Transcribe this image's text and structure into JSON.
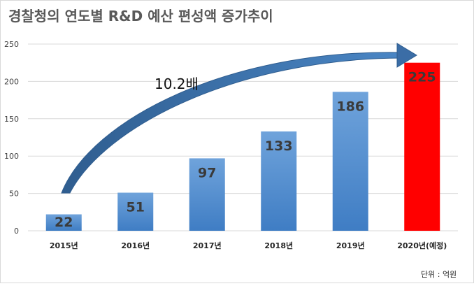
{
  "chart_data": {
    "type": "bar",
    "title": "경찰청의 연도별 R&D 예산 편성액 증가추이",
    "categories": [
      "2015년",
      "2016년",
      "2017년",
      "2018년",
      "2019년",
      "2020년(예정)"
    ],
    "values": [
      22,
      51,
      97,
      133,
      186,
      225
    ],
    "value_labels": [
      "22",
      "51",
      "97",
      "133",
      "186",
      "225"
    ],
    "ylim": [
      0,
      250
    ],
    "yticks": [
      "0",
      "50",
      "100",
      "150",
      "200",
      "250"
    ],
    "grid": true,
    "legend": "none",
    "annotation": "10.2배",
    "unit_note": "단위 : 억원",
    "colors": {
      "bar_top": "#6fa3db",
      "bar_bottom": "#3f7dc4",
      "highlight_bar": "#ff0000",
      "arrow": "#3b6da6",
      "grid": "#d9d9d9"
    }
  }
}
